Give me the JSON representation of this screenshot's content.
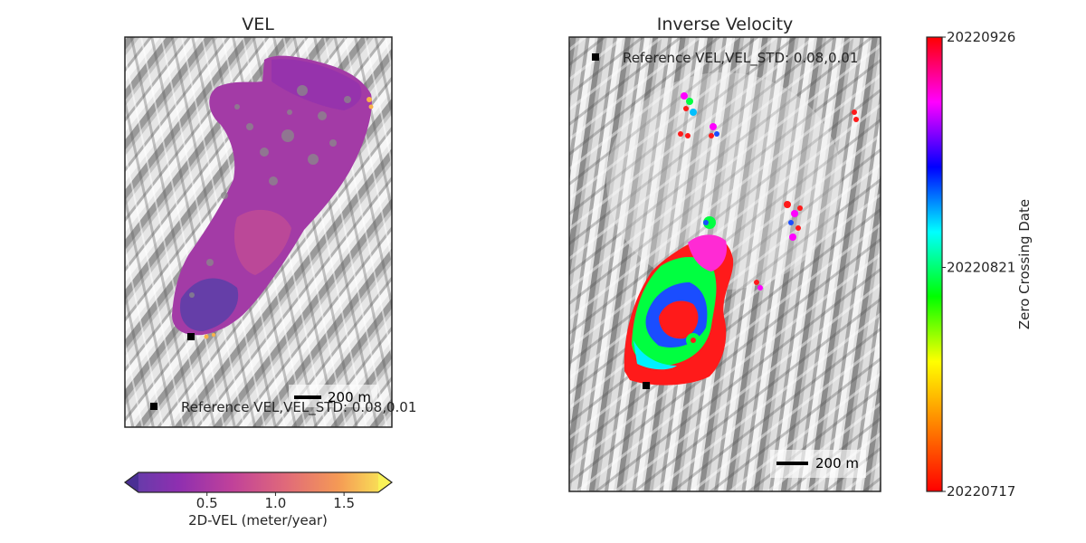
{
  "chart_data": [
    {
      "type": "scatter",
      "title": "VEL",
      "legend": {
        "label": "Reference VEL,VEL_STD: 0.08,0.01",
        "placement": "lower-left"
      },
      "scalebar": {
        "label": "200 m",
        "placement": "lower-right"
      },
      "colorbar": {
        "label": "2D-VEL (meter/year)",
        "orientation": "horizontal",
        "placement": "bottom",
        "colormap": "plasma",
        "vmin": 0.0,
        "vmax": 1.75,
        "extend": "both",
        "ticks": [
          "0.5",
          "1.0",
          "1.5"
        ],
        "tick_values": [
          0.5,
          1.0,
          1.5
        ],
        "colors": [
          "#5b3fa8",
          "#8e2fb0",
          "#c0419a",
          "#e0697a",
          "#f59a55",
          "#f9f257"
        ]
      },
      "grid": false
    },
    {
      "type": "scatter",
      "title": "Inverse Velocity",
      "legend": {
        "label": "Reference VEL,VEL_STD: 0.08,0.01",
        "placement": "upper-left"
      },
      "scalebar": {
        "label": "200 m",
        "placement": "lower-right"
      },
      "colorbar": {
        "label": "Zero Crossing Date",
        "orientation": "vertical",
        "placement": "right",
        "colormap": "hsv",
        "ticks": [
          "20220926",
          "20220821",
          "20220717"
        ],
        "tick_fractions": [
          1.0,
          0.493,
          0.0
        ],
        "colors": [
          "#ff0000",
          "#ff8000",
          "#ffff00",
          "#00ff00",
          "#00ffff",
          "#0000ff",
          "#ff00ff",
          "#ff0000"
        ]
      },
      "grid": false
    }
  ]
}
